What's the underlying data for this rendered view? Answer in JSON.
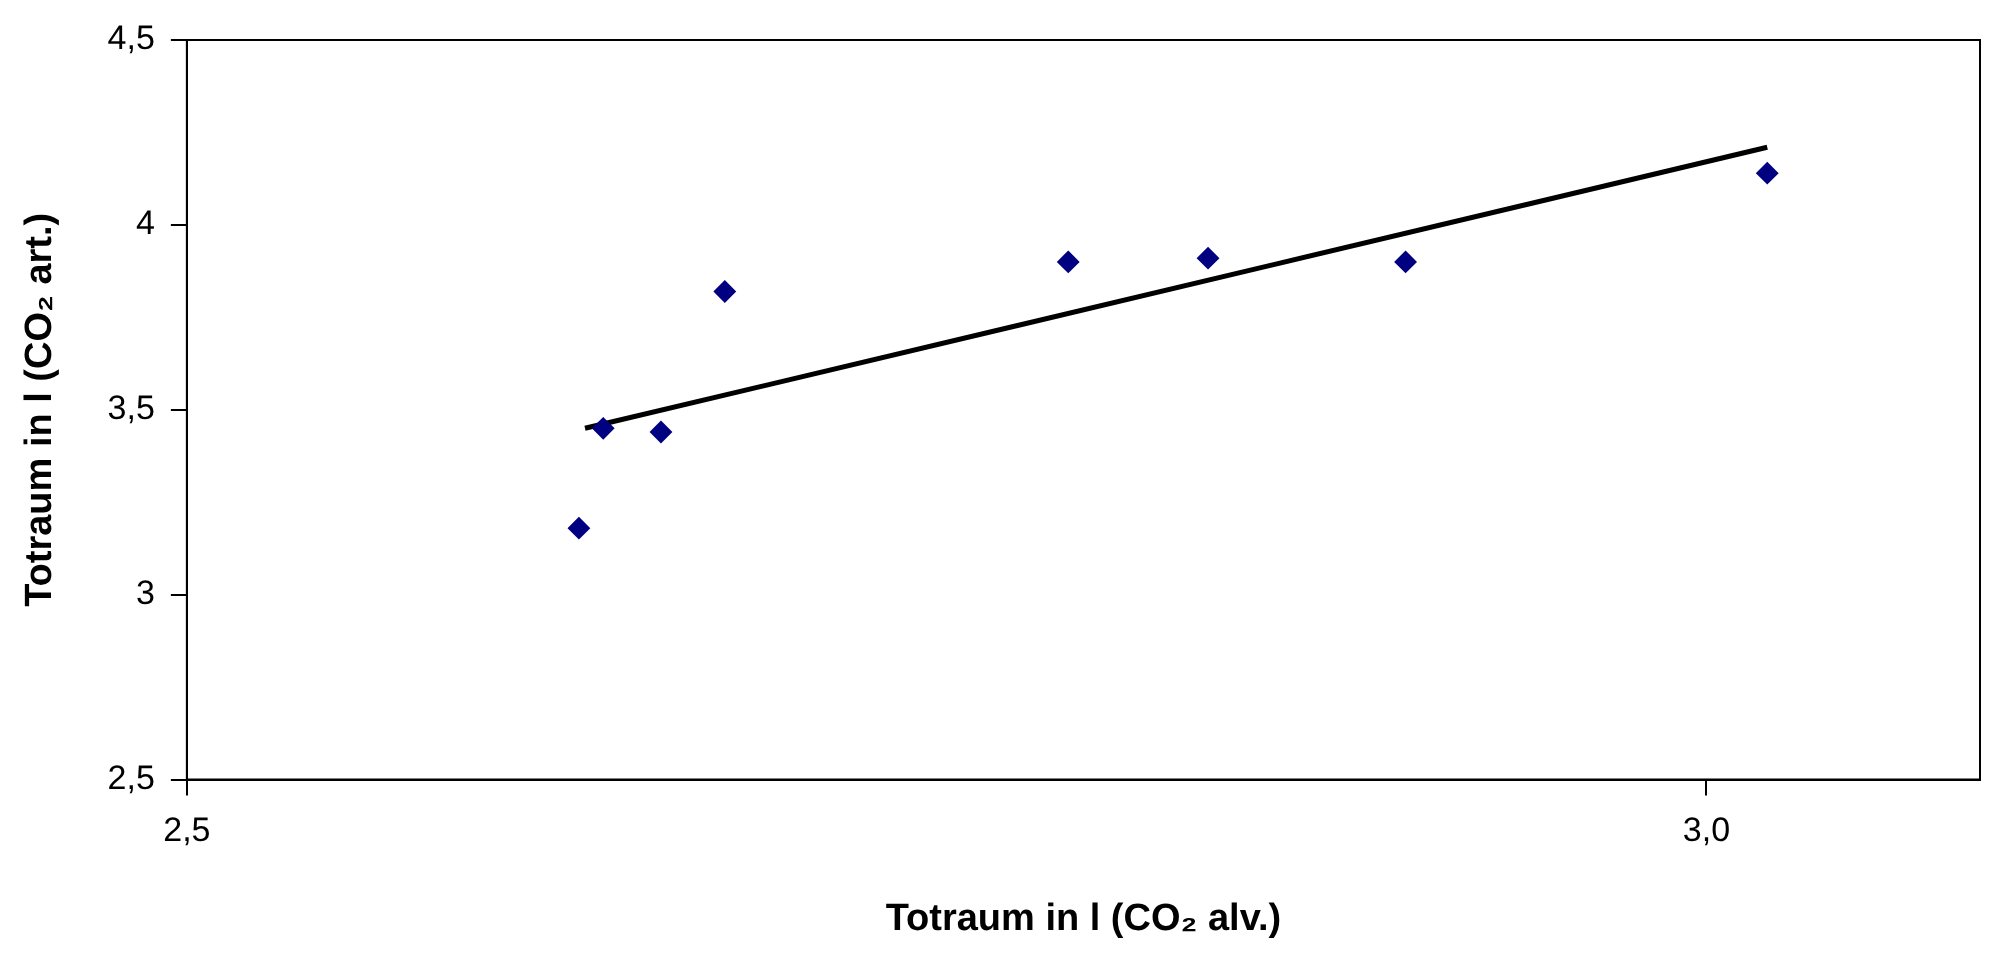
{
  "chart_data": {
    "type": "scatter",
    "xlabel": "Totraum in l (CO₂ alv.)",
    "ylabel": "Totraum in l (CO₂ art.)",
    "xlim": [
      2.5,
      3.09
    ],
    "ylim": [
      2.5,
      4.5
    ],
    "xticks": [
      {
        "value": 2.5,
        "label": "2,5"
      },
      {
        "value": 3.0,
        "label": "3,0"
      }
    ],
    "yticks": [
      {
        "value": 2.5,
        "label": "2,5"
      },
      3,
      {
        "value": 3.5,
        "label": "3,5"
      },
      4,
      {
        "value": 4.5,
        "label": "4,5"
      }
    ],
    "grid": false,
    "legend": false,
    "marker": "diamond",
    "series": [
      {
        "type": "scatter",
        "color": "#000080",
        "x": [
          2.629,
          2.637,
          2.656,
          2.677,
          2.79,
          2.836,
          2.901,
          3.02
        ],
        "values": [
          3.18,
          3.45,
          3.44,
          3.82,
          3.9,
          3.91,
          3.9,
          4.14
        ]
      },
      {
        "type": "line",
        "color": "#000000",
        "marker": "none",
        "line_style": "solid",
        "x": [
          2.631,
          3.02
        ],
        "values": [
          3.45,
          4.21
        ]
      }
    ]
  }
}
